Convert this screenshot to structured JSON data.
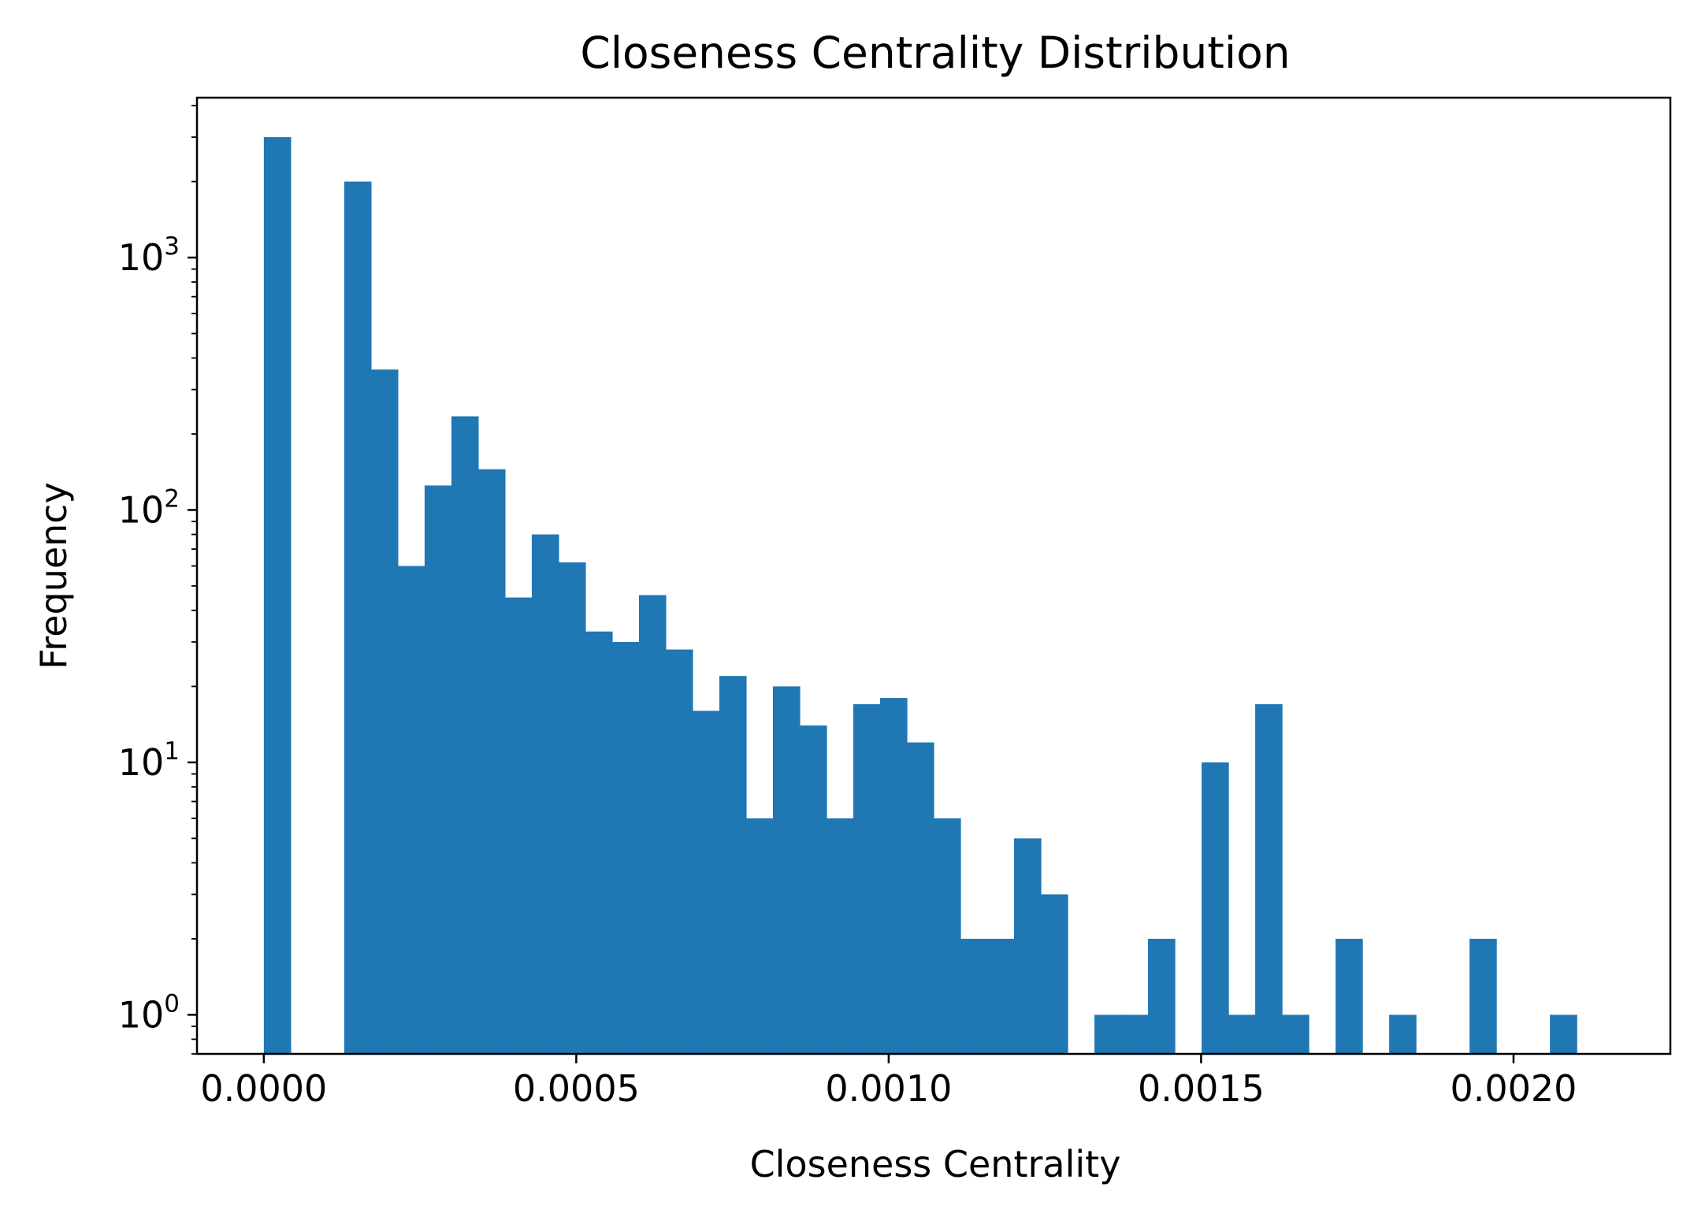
{
  "chart_data": {
    "type": "bar",
    "title": "Closeness Centrality Distribution",
    "xlabel": "Closeness Centrality",
    "ylabel": "Frequency",
    "yscale": "log",
    "xlim": [
      -0.000107,
      0.002251
    ],
    "ylim": [
      0.7,
      4300
    ],
    "x_ticks": [
      {
        "value": 0.0,
        "label": "0.0000"
      },
      {
        "value": 0.0005,
        "label": "0.0005"
      },
      {
        "value": 0.001,
        "label": "0.0010"
      },
      {
        "value": 0.0015,
        "label": "0.0015"
      },
      {
        "value": 0.002,
        "label": "0.0020"
      }
    ],
    "y_ticks": [
      {
        "value": 1,
        "base": "10",
        "exp": "0"
      },
      {
        "value": 10,
        "base": "10",
        "exp": "1"
      },
      {
        "value": 100,
        "base": "10",
        "exp": "2"
      },
      {
        "value": 1000,
        "base": "10",
        "exp": "3"
      }
    ],
    "bin_start": 0.0,
    "bin_width": 4.288e-05,
    "values": [
      3000,
      0,
      0,
      2000,
      360,
      60,
      125,
      235,
      145,
      45,
      80,
      62,
      33,
      30,
      46,
      28,
      16,
      22,
      6,
      20,
      14,
      6,
      17,
      18,
      12,
      6,
      2,
      2,
      5,
      3,
      0,
      1,
      1,
      2,
      0,
      10,
      1,
      17,
      1,
      0,
      2,
      0,
      1,
      0,
      0,
      2,
      0,
      0,
      1
    ],
    "color": "#1f77b4",
    "grid": false,
    "legend": "none"
  }
}
